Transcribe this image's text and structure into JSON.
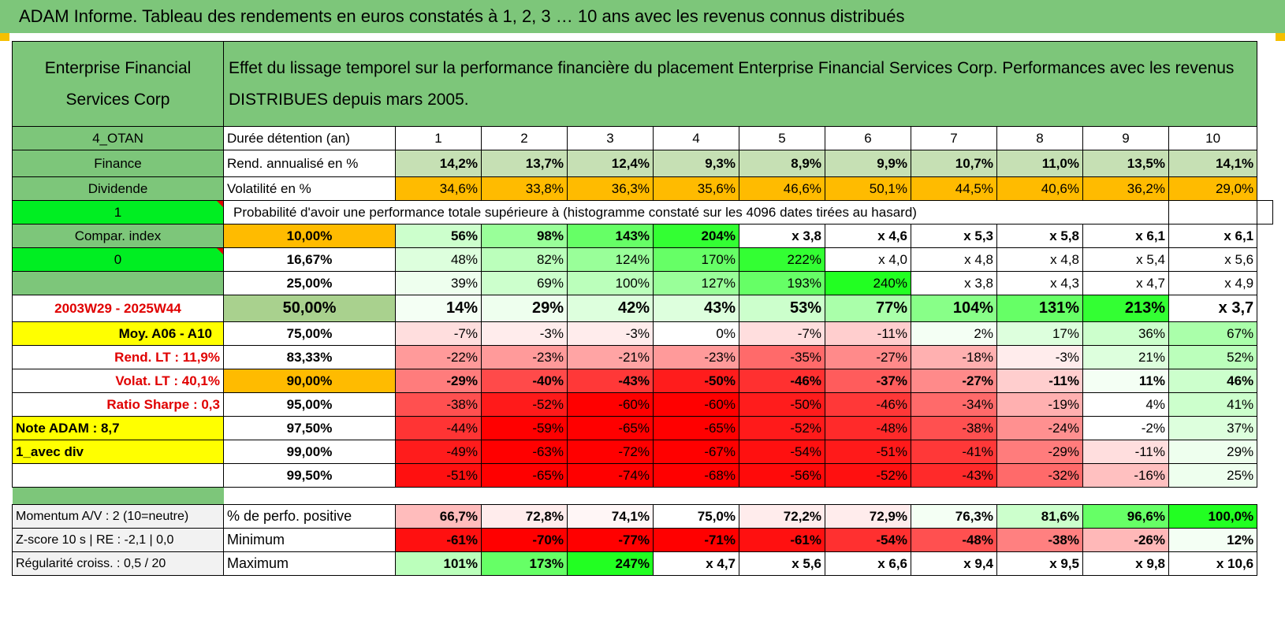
{
  "title": "ADAM Informe. Tableau des rendements en euros constatés à 1, 2, 3 … 10 ans avec les revenus connus distribués",
  "header": {
    "company": "Enterprise Financial Services Corp",
    "description": "Effet du lissage temporel sur la performance financière du placement Enterprise Financial Services Corp. Performances avec les revenus DISTRIBUES depuis mars 2005."
  },
  "rows": {
    "durations": {
      "side": "4_OTAN",
      "label": "Durée détention (an)",
      "values": [
        "1",
        "2",
        "3",
        "4",
        "5",
        "6",
        "7",
        "8",
        "9",
        "10"
      ]
    },
    "annualized": {
      "side": "Finance",
      "label": "Rend. annualisé en %",
      "values": [
        "14,2%",
        "13,7%",
        "12,4%",
        "9,3%",
        "8,9%",
        "9,9%",
        "10,7%",
        "11,0%",
        "13,5%",
        "14,1%"
      ]
    },
    "volatility": {
      "side": "Dividende",
      "label": "Volatilité en %",
      "values": [
        "34,6%",
        "33,8%",
        "36,3%",
        "35,6%",
        "46,6%",
        "50,1%",
        "44,5%",
        "40,6%",
        "36,2%",
        "29,0%"
      ]
    },
    "probability": {
      "side": "1",
      "label": "Probabilité d'avoir une performance totale supérieure à (histogramme constaté sur les 4096 dates tirées au hasard)"
    }
  },
  "prob_rows": [
    {
      "side": "Compar. index",
      "pct": "10,00%",
      "values": [
        "56%",
        "98%",
        "143%",
        "204%",
        "x 3,8",
        "x 4,6",
        "x 5,3",
        "x 5,8",
        "x 6,1",
        "x 6,1"
      ]
    },
    {
      "side": "0",
      "pct": "16,67%",
      "values": [
        "48%",
        "82%",
        "124%",
        "170%",
        "222%",
        "x 4,0",
        "x 4,8",
        "x 4,8",
        "x 5,4",
        "x 5,6"
      ]
    },
    {
      "side": "",
      "pct": "25,00%",
      "values": [
        "39%",
        "69%",
        "100%",
        "127%",
        "193%",
        "240%",
        "x 3,8",
        "x 4,3",
        "x 4,7",
        "x 4,9"
      ]
    },
    {
      "side": "2003W29 - 2025W44",
      "pct": "50,00%",
      "values": [
        "14%",
        "29%",
        "42%",
        "43%",
        "53%",
        "77%",
        "104%",
        "131%",
        "213%",
        "x 3,7"
      ]
    },
    {
      "side": "Moy. A06 - A10",
      "pct": "75,00%",
      "values": [
        "-7%",
        "-3%",
        "-3%",
        "0%",
        "-7%",
        "-11%",
        "2%",
        "17%",
        "36%",
        "67%"
      ]
    },
    {
      "side": "Rend. LT :    11,9%",
      "pct": "83,33%",
      "values": [
        "-22%",
        "-23%",
        "-21%",
        "-23%",
        "-35%",
        "-27%",
        "-18%",
        "-3%",
        "21%",
        "52%"
      ]
    },
    {
      "side": "Volat. LT :    40,1%",
      "pct": "90,00%",
      "values": [
        "-29%",
        "-40%",
        "-43%",
        "-50%",
        "-46%",
        "-37%",
        "-27%",
        "-11%",
        "11%",
        "46%"
      ]
    },
    {
      "side": "Ratio Sharpe :     0,3",
      "pct": "95,00%",
      "values": [
        "-38%",
        "-52%",
        "-60%",
        "-60%",
        "-50%",
        "-46%",
        "-34%",
        "-19%",
        "4%",
        "41%"
      ]
    },
    {
      "side": "Note ADAM : 8,7",
      "pct": "97,50%",
      "values": [
        "-44%",
        "-59%",
        "-65%",
        "-65%",
        "-52%",
        "-48%",
        "-38%",
        "-24%",
        "-2%",
        "37%"
      ]
    },
    {
      "side": "1_avec div",
      "pct": "99,00%",
      "values": [
        "-49%",
        "-63%",
        "-72%",
        "-67%",
        "-54%",
        "-51%",
        "-41%",
        "-29%",
        "-11%",
        "29%"
      ]
    },
    {
      "side": "",
      "pct": "99,50%",
      "values": [
        "-51%",
        "-65%",
        "-74%",
        "-68%",
        "-56%",
        "-52%",
        "-43%",
        "-32%",
        "-16%",
        "25%"
      ]
    }
  ],
  "bottom_rows": [
    {
      "side": "Momentum A/V : 2 (10=neutre)",
      "label": "% de perfo. positive",
      "values": [
        "66,7%",
        "72,8%",
        "74,1%",
        "75,0%",
        "72,2%",
        "72,9%",
        "76,3%",
        "81,6%",
        "96,6%",
        "100,0%"
      ]
    },
    {
      "side": "Z-score 10 s | RE : -2,1 | 0,0",
      "label": "Minimum",
      "values": [
        "-61%",
        "-70%",
        "-77%",
        "-71%",
        "-61%",
        "-54%",
        "-48%",
        "-38%",
        "-26%",
        "12%"
      ]
    },
    {
      "side": "Régularité croiss. : 0,5 / 20",
      "label": "Maximum",
      "values": [
        "101%",
        "173%",
        "247%",
        "x 4,7",
        "x 5,6",
        "x 6,6",
        "x 9,4",
        "x 9,5",
        "x 9,8",
        "x 10,6"
      ]
    }
  ],
  "colors": {
    "title_green": "#7dc67a",
    "bright_green": "#00ee22",
    "orange": "#ffbb00",
    "yellow": "#ffff00",
    "label_red": "#e00000",
    "annualized_fill": "#c6e0b4",
    "pct_50_fill": "#a9d18e",
    "light_gray": "#f2f2f2"
  },
  "cell_fills": {
    "prob_rows": [
      [
        "#ccffcc",
        "#99ff99",
        "#66ff66",
        "#33ff33",
        "#ffffff",
        "#ffffff",
        "#ffffff",
        "#ffffff",
        "#ffffff",
        "#ffffff"
      ],
      [
        "#ddffdd",
        "#bbffbb",
        "#99ff99",
        "#66ff66",
        "#33ff33",
        "#ffffff",
        "#ffffff",
        "#ffffff",
        "#ffffff",
        "#ffffff"
      ],
      [
        "#eeffee",
        "#ccffcc",
        "#bbffbb",
        "#99ff99",
        "#66ff66",
        "#22ff22",
        "#ffffff",
        "#ffffff",
        "#ffffff",
        "#ffffff"
      ],
      [
        "#f4fff4",
        "#eeffee",
        "#ddffdd",
        "#ddffdd",
        "#ccffcc",
        "#aaffaa",
        "#88ff88",
        "#66ff66",
        "#33ff33",
        "#ffffff"
      ],
      [
        "#ffdede",
        "#ffecec",
        "#ffecec",
        "#ffffff",
        "#ffdede",
        "#ffcece",
        "#f4fff4",
        "#ddffdd",
        "#ccffcc",
        "#aaffaa"
      ],
      [
        "#ff9a9a",
        "#ff9a9a",
        "#ffa4a4",
        "#ff9a9a",
        "#ff6a6a",
        "#ff8a8a",
        "#ffb0b0",
        "#ffecec",
        "#ddffdd",
        "#bbffbb"
      ],
      [
        "#ff7c7c",
        "#ff4a4a",
        "#ff3838",
        "#ff1c1c",
        "#ff3030",
        "#ff5c5c",
        "#ff8a8a",
        "#ffcece",
        "#f4fff4",
        "#ccffcc"
      ],
      [
        "#ff5050",
        "#ff1a1a",
        "#ff0000",
        "#ff0000",
        "#ff1c1c",
        "#ff3838",
        "#ff6a6a",
        "#ffb0b0",
        "#ffffff",
        "#ccffcc"
      ],
      [
        "#ff3434",
        "#ff0000",
        "#ff0000",
        "#ff0000",
        "#ff1a1a",
        "#ff2a2a",
        "#ff5050",
        "#ff9090",
        "#ffffff",
        "#ddffdd"
      ],
      [
        "#ff1c1c",
        "#ff0000",
        "#ff0000",
        "#ff0000",
        "#ff1010",
        "#ff1a1a",
        "#ff3838",
        "#ff7c7c",
        "#ffdede",
        "#eeffee"
      ],
      [
        "#ff1010",
        "#ff0000",
        "#ff0000",
        "#ff0000",
        "#ff0a0a",
        "#ff1010",
        "#ff2a2a",
        "#ff6a6a",
        "#ffc0c0",
        "#eeffee"
      ]
    ],
    "bottom_rows": [
      [
        "#ffbcbc",
        "#ffecec",
        "#fff6f6",
        "#ffffff",
        "#ffecec",
        "#ffecec",
        "#f4fff4",
        "#ccffcc",
        "#66ff66",
        "#22ff22"
      ],
      [
        "#ff1010",
        "#ff0000",
        "#ff0000",
        "#ff0000",
        "#ff1010",
        "#ff3030",
        "#ff5050",
        "#ff8080",
        "#ffb8b8",
        "#f4fff4"
      ],
      [
        "#bbffbb",
        "#66ff66",
        "#22ff22",
        "#ffffff",
        "#ffffff",
        "#ffffff",
        "#ffffff",
        "#ffffff",
        "#ffffff",
        "#ffffff"
      ]
    ]
  }
}
